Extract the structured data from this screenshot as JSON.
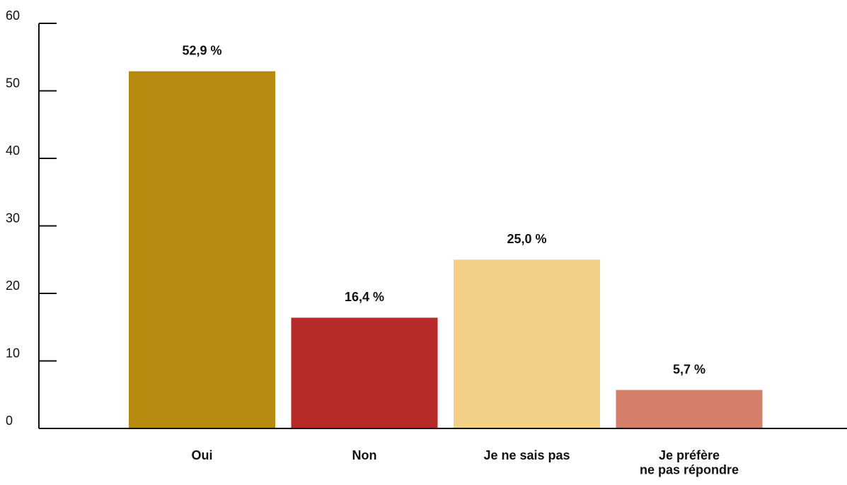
{
  "chart_data": {
    "type": "bar",
    "categories": [
      "Oui",
      "Non",
      "Je ne sais pas",
      "Je préfère\nne pas répondre"
    ],
    "values": [
      52.9,
      16.4,
      25.0,
      5.7
    ],
    "value_labels": [
      "52,9 %",
      "16,4 %",
      "25,0 %",
      "5,7 %"
    ],
    "colors": [
      "#b58a0f",
      "#b82a27",
      "#f3cf88",
      "#d37f6a"
    ],
    "ylim": [
      0,
      60
    ],
    "yticks": [
      0,
      10,
      20,
      30,
      40,
      50,
      60
    ],
    "grid": false
  }
}
